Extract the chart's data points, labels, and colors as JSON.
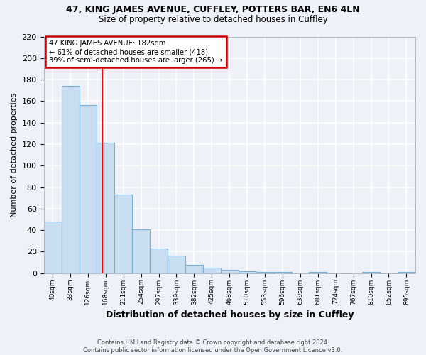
{
  "title1": "47, KING JAMES AVENUE, CUFFLEY, POTTERS BAR, EN6 4LN",
  "title2": "Size of property relative to detached houses in Cuffley",
  "xlabel": "Distribution of detached houses by size in Cuffley",
  "ylabel": "Number of detached properties",
  "footnote": "Contains HM Land Registry data © Crown copyright and database right 2024.\nContains public sector information licensed under the Open Government Licence v3.0.",
  "bin_labels": [
    "40sqm",
    "83sqm",
    "126sqm",
    "168sqm",
    "211sqm",
    "254sqm",
    "297sqm",
    "339sqm",
    "382sqm",
    "425sqm",
    "468sqm",
    "510sqm",
    "553sqm",
    "596sqm",
    "639sqm",
    "681sqm",
    "724sqm",
    "767sqm",
    "810sqm",
    "852sqm",
    "895sqm"
  ],
  "bin_edges": [
    40,
    83,
    126,
    168,
    211,
    254,
    297,
    339,
    382,
    425,
    468,
    510,
    553,
    596,
    639,
    681,
    724,
    767,
    810,
    852,
    895,
    938
  ],
  "values": [
    48,
    174,
    156,
    121,
    73,
    41,
    23,
    16,
    8,
    5,
    3,
    2,
    1,
    1,
    0,
    1,
    0,
    0,
    1,
    0,
    1
  ],
  "bar_color": "#c9ddf0",
  "bar_edge_color": "#7ab0d8",
  "red_line_x": 182,
  "annotation_text": "47 KING JAMES AVENUE: 182sqm\n← 61% of detached houses are smaller (418)\n39% of semi-detached houses are larger (265) →",
  "ylim": [
    0,
    220
  ],
  "yticks": [
    0,
    20,
    40,
    60,
    80,
    100,
    120,
    140,
    160,
    180,
    200,
    220
  ],
  "background_color": "#eef2f8",
  "grid_color": "#ffffff",
  "annotation_box_color": "#ffffff",
  "annotation_box_edge": "#cc0000"
}
